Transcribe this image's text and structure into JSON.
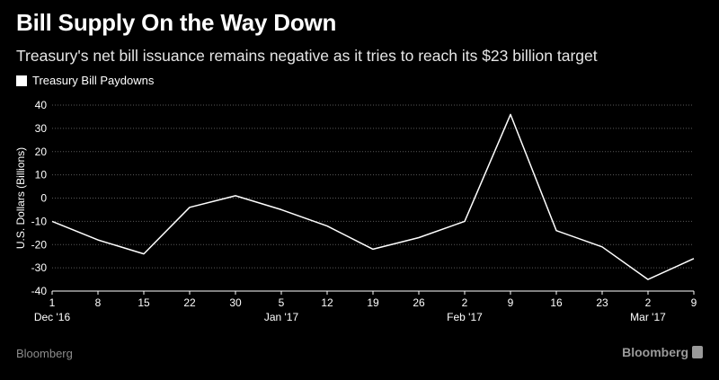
{
  "header": {
    "title": "Bill Supply On the Way Down",
    "subtitle": "Treasury's net bill issuance remains negative as it tries to reach its $23 billion target"
  },
  "legend": {
    "label": "Treasury Bill Paydowns"
  },
  "footer": {
    "source": "Bloomberg",
    "brand": "Bloomberg"
  },
  "colors": {
    "background": "#000000",
    "line": "#ffffff",
    "grid": "#5a5a5a",
    "muted": "#8c8c8c"
  },
  "chart_data": {
    "type": "line",
    "title": "Bill Supply On the Way Down",
    "ylabel": "U.S. Dollars (Billions)",
    "xlabel": "",
    "ylim": [
      -40,
      40
    ],
    "yticks": [
      40,
      30,
      20,
      10,
      0,
      -10,
      -20,
      -30,
      -40
    ],
    "grid": true,
    "legend_position": "top-left",
    "x": [
      "1",
      "8",
      "15",
      "22",
      "30",
      "5",
      "12",
      "19",
      "26",
      "2",
      "9",
      "16",
      "23",
      "2",
      "9"
    ],
    "month_labels": [
      {
        "index": 0,
        "label": "Dec '16"
      },
      {
        "index": 5,
        "label": "Jan '17"
      },
      {
        "index": 9,
        "label": "Feb '17"
      },
      {
        "index": 13,
        "label": "Mar '17"
      }
    ],
    "series": [
      {
        "name": "Treasury Bill Paydowns",
        "values": [
          -10,
          -18,
          -24,
          -4,
          1,
          -5,
          -12,
          -22,
          -17,
          -10,
          36,
          -14,
          -21,
          -35,
          -26
        ]
      }
    ]
  }
}
